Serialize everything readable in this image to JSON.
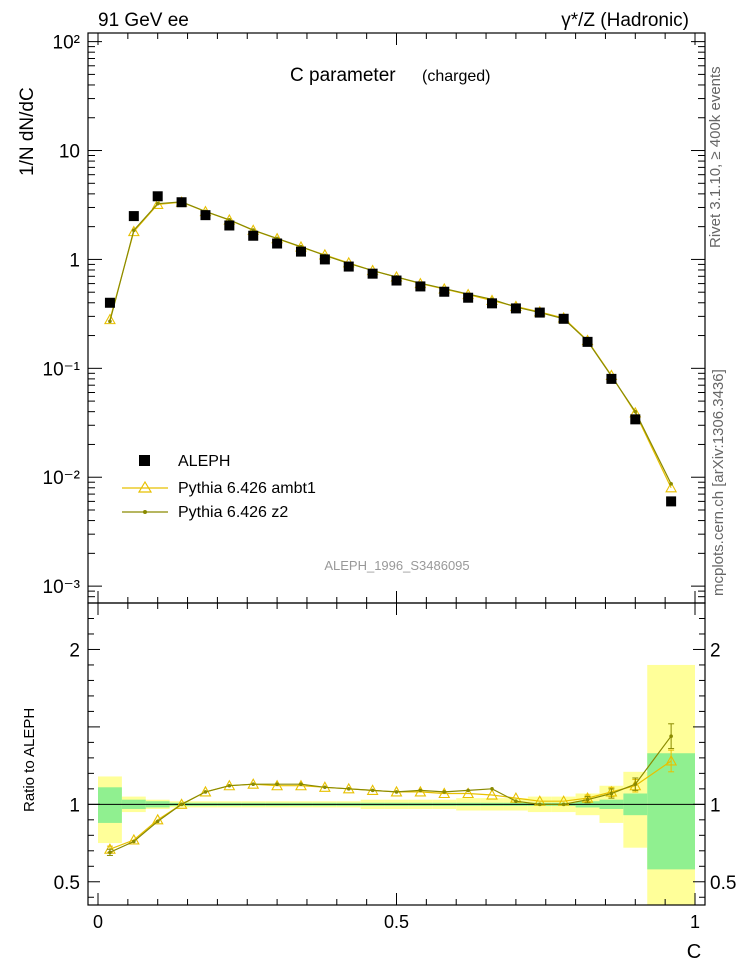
{
  "header": {
    "left": "91 GeV ee",
    "right": "γ*/Z (Hadronic)",
    "side_top": "Rivet 3.1.10, ≥ 400k events",
    "side_bottom": "mcplots.cern.ch [arXiv:1306.3436]"
  },
  "chart_data": [
    {
      "type": "scatter",
      "panel": "main",
      "title": "C parameter",
      "title_note": "(charged)",
      "ylabel": "1/N dN/dC",
      "watermark": "ALEPH_1996_S3486095",
      "yscale": "log",
      "xlim": [
        0,
        1
      ],
      "ylim": [
        0.0007,
        120
      ],
      "ytick_labels": [
        {
          "value": 100,
          "label": "10²"
        },
        {
          "value": 10,
          "label": "10"
        },
        {
          "value": 1,
          "label": "1"
        },
        {
          "value": 0.1,
          "label": "10⁻¹"
        },
        {
          "value": 0.01,
          "label": "10⁻²"
        },
        {
          "value": 0.001,
          "label": "10⁻³"
        }
      ],
      "legend_position": "lower-left",
      "x": [
        0.02,
        0.06,
        0.1,
        0.14,
        0.18,
        0.22,
        0.26,
        0.3,
        0.34,
        0.38,
        0.42,
        0.46,
        0.5,
        0.54,
        0.58,
        0.62,
        0.66,
        0.7,
        0.74,
        0.78,
        0.82,
        0.86,
        0.9,
        0.96
      ],
      "series": [
        {
          "name": "ALEPH",
          "color": "#000000",
          "marker": "square",
          "values": [
            0.4,
            2.5,
            3.8,
            3.35,
            2.55,
            2.05,
            1.65,
            1.4,
            1.18,
            1.0,
            0.86,
            0.74,
            0.64,
            0.565,
            0.505,
            0.445,
            0.395,
            0.355,
            0.325,
            0.285,
            0.175,
            0.08,
            0.034,
            0.006
          ]
        },
        {
          "name": "Pythia 6.426 ambt1",
          "color": "#e8c000",
          "marker": "open-triangle",
          "values": [
            0.28,
            1.8,
            3.2,
            3.35,
            2.75,
            2.3,
            1.85,
            1.55,
            1.3,
            1.1,
            0.93,
            0.79,
            0.69,
            0.6,
            0.535,
            0.475,
            0.42,
            0.37,
            0.33,
            0.29,
            0.18,
            0.086,
            0.039,
            0.008
          ]
        },
        {
          "name": "Pythia 6.426 z2",
          "color": "#8a8a00",
          "marker": "dot",
          "values": [
            0.27,
            1.85,
            3.25,
            3.38,
            2.76,
            2.31,
            1.86,
            1.56,
            1.31,
            1.09,
            0.92,
            0.79,
            0.69,
            0.605,
            0.54,
            0.48,
            0.43,
            0.365,
            0.325,
            0.285,
            0.178,
            0.085,
            0.04,
            0.0087
          ]
        }
      ]
    },
    {
      "type": "line",
      "panel": "ratio",
      "ylabel": "Ratio to ALEPH",
      "xlabel": "C",
      "xlim": [
        0,
        1
      ],
      "ylim": [
        0.35,
        2.3
      ],
      "xtick_labels": [
        {
          "value": 0,
          "label": "0"
        },
        {
          "value": 0.5,
          "label": "0.5"
        },
        {
          "value": 1,
          "label": "1"
        }
      ],
      "ytick_labels": [
        {
          "value": 2,
          "label": "2"
        },
        {
          "value": 1,
          "label": "1"
        },
        {
          "value": 0.5,
          "label": "0.5"
        }
      ],
      "x": [
        0.02,
        0.06,
        0.1,
        0.14,
        0.18,
        0.22,
        0.26,
        0.3,
        0.34,
        0.38,
        0.42,
        0.46,
        0.5,
        0.54,
        0.58,
        0.62,
        0.66,
        0.7,
        0.74,
        0.78,
        0.82,
        0.86,
        0.9,
        0.96
      ],
      "bin_edges": [
        0.0,
        0.04,
        0.08,
        0.12,
        0.16,
        0.2,
        0.24,
        0.28,
        0.32,
        0.36,
        0.4,
        0.44,
        0.48,
        0.52,
        0.56,
        0.6,
        0.64,
        0.68,
        0.72,
        0.76,
        0.8,
        0.84,
        0.88,
        0.92,
        1.0
      ],
      "reference_line": 1,
      "bands": [
        {
          "name": "stat",
          "color": "#90f090",
          "lo": [
            0.88,
            0.97,
            0.98,
            0.99,
            0.99,
            0.99,
            0.99,
            0.99,
            0.99,
            0.99,
            0.99,
            0.99,
            0.99,
            0.99,
            0.99,
            0.99,
            0.99,
            0.99,
            0.99,
            0.99,
            0.98,
            0.97,
            0.93,
            0.58
          ],
          "hi": [
            1.11,
            1.03,
            1.02,
            1.01,
            1.01,
            1.01,
            1.01,
            1.01,
            1.01,
            1.01,
            1.01,
            1.01,
            1.01,
            1.01,
            1.01,
            1.01,
            1.01,
            1.01,
            1.01,
            1.01,
            1.02,
            1.03,
            1.07,
            1.33
          ]
        },
        {
          "name": "total",
          "color": "#ffff99",
          "lo": [
            0.75,
            0.95,
            0.97,
            0.98,
            0.98,
            0.98,
            0.98,
            0.98,
            0.98,
            0.98,
            0.98,
            0.97,
            0.97,
            0.97,
            0.97,
            0.96,
            0.96,
            0.96,
            0.95,
            0.95,
            0.93,
            0.88,
            0.72,
            0.35
          ],
          "hi": [
            1.18,
            1.05,
            1.03,
            1.02,
            1.02,
            1.02,
            1.02,
            1.02,
            1.02,
            1.02,
            1.02,
            1.03,
            1.03,
            1.03,
            1.03,
            1.04,
            1.04,
            1.04,
            1.05,
            1.05,
            1.07,
            1.12,
            1.21,
            1.9
          ]
        }
      ],
      "series": [
        {
          "name": "Pythia 6.426 ambt1",
          "color": "#e8c000",
          "marker": "open-triangle",
          "values": [
            0.71,
            0.77,
            0.9,
            1.0,
            1.08,
            1.12,
            1.13,
            1.12,
            1.12,
            1.11,
            1.1,
            1.09,
            1.08,
            1.08,
            1.07,
            1.07,
            1.06,
            1.04,
            1.02,
            1.02,
            1.04,
            1.08,
            1.12,
            1.28
          ],
          "err": [
            0.02,
            0.01,
            0.01,
            0.01,
            0.01,
            0.01,
            0.01,
            0.01,
            0.01,
            0.01,
            0.01,
            0.01,
            0.01,
            0.01,
            0.01,
            0.01,
            0.01,
            0.01,
            0.01,
            0.01,
            0.02,
            0.03,
            0.04,
            0.07
          ]
        },
        {
          "name": "Pythia 6.426 z2",
          "color": "#8a8a00",
          "marker": "dot",
          "values": [
            0.69,
            0.76,
            0.89,
            1.0,
            1.08,
            1.12,
            1.13,
            1.13,
            1.13,
            1.11,
            1.1,
            1.09,
            1.08,
            1.09,
            1.08,
            1.09,
            1.1,
            1.02,
            1.0,
            1.0,
            1.03,
            1.07,
            1.13,
            1.44
          ],
          "err": [
            0.02,
            0.01,
            0.01,
            0.01,
            0.01,
            0.01,
            0.01,
            0.01,
            0.01,
            0.01,
            0.01,
            0.01,
            0.01,
            0.01,
            0.01,
            0.01,
            0.01,
            0.01,
            0.01,
            0.01,
            0.02,
            0.03,
            0.04,
            0.08
          ]
        }
      ]
    }
  ]
}
